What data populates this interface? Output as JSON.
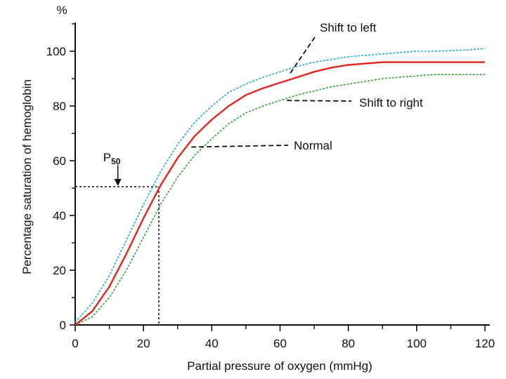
{
  "chart_data": {
    "type": "line",
    "title": "",
    "xlabel": "Partial pressure of oxygen (mmHg)",
    "ylabel": "Percentage saturation of hemoglobin",
    "y_unit": "%",
    "xlim": [
      0,
      120
    ],
    "ylim": [
      0,
      110
    ],
    "x_ticks": [
      0,
      20,
      40,
      60,
      80,
      100,
      120
    ],
    "y_ticks": [
      0,
      20,
      40,
      60,
      80,
      100
    ],
    "grid": false,
    "series": [
      {
        "name": "Shift to left",
        "color": "#1fa7dc",
        "style": "dashed",
        "x": [
          0,
          5,
          10,
          15,
          20,
          25,
          30,
          35,
          40,
          45,
          50,
          55,
          60,
          65,
          70,
          75,
          80,
          85,
          90,
          95,
          100,
          105,
          110,
          115,
          120
        ],
        "y": [
          1,
          8,
          18,
          31,
          44,
          56,
          66,
          74,
          80,
          85,
          88,
          90.5,
          92.5,
          94.5,
          96,
          97,
          98,
          98.5,
          99,
          99.5,
          100,
          100,
          100.2,
          100.5,
          101
        ]
      },
      {
        "name": "Normal",
        "color": "#e0251b",
        "style": "solid",
        "x": [
          0,
          5,
          10,
          15,
          20,
          25,
          30,
          35,
          40,
          45,
          50,
          55,
          60,
          65,
          70,
          75,
          80,
          85,
          90,
          95,
          100,
          105,
          110,
          115,
          120
        ],
        "y": [
          0,
          5,
          14,
          26,
          39,
          51,
          61,
          69,
          75,
          80,
          84,
          86.5,
          88.5,
          90.5,
          92.5,
          94,
          95,
          95.5,
          96,
          96,
          96,
          96,
          96,
          96,
          96
        ]
      },
      {
        "name": "Shift to right",
        "color": "#2ea336",
        "style": "dashed",
        "x": [
          0,
          5,
          10,
          15,
          20,
          25,
          30,
          35,
          40,
          45,
          50,
          55,
          60,
          65,
          70,
          75,
          80,
          85,
          90,
          95,
          100,
          105,
          110,
          115,
          120
        ],
        "y": [
          0,
          3,
          10,
          20,
          32,
          44,
          54,
          62,
          68,
          73.5,
          77.5,
          80,
          82,
          84,
          85.5,
          87,
          88,
          89,
          90,
          90.5,
          91,
          91.5,
          91.5,
          91.5,
          91.5
        ]
      }
    ],
    "p50": {
      "label_main": "P",
      "label_sub": "50",
      "x": 24.5,
      "y": 50.5
    },
    "annotations": [
      {
        "text": "Shift to left",
        "series": "Shift to left",
        "point": [
          63,
          92
        ]
      },
      {
        "text": "Shift to right",
        "series": "Shift to right",
        "point": [
          62,
          82
        ]
      },
      {
        "text": "Normal",
        "series": "Normal",
        "point": [
          34,
          65
        ]
      }
    ]
  }
}
